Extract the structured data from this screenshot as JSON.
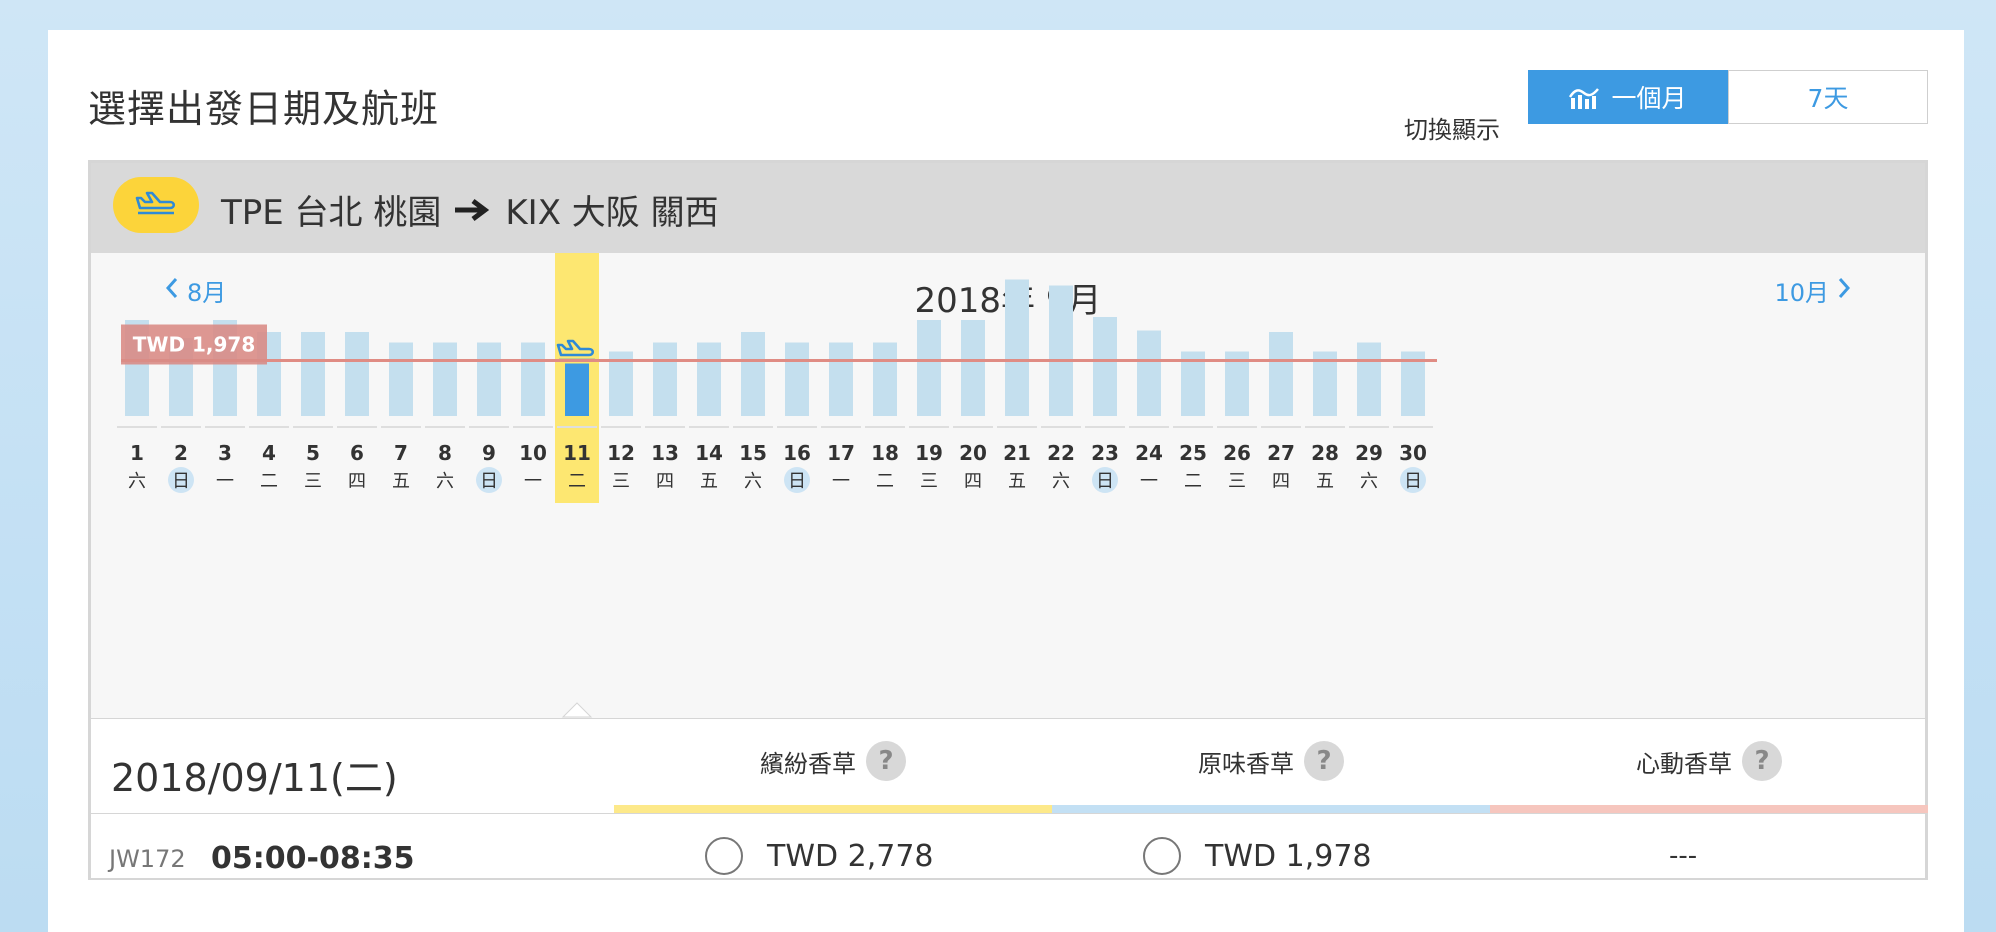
{
  "page": {
    "title": "選擇出發日期及航班",
    "toggle_label": "切換顯示",
    "toggle_options": [
      "一個月",
      "7天"
    ],
    "toggle_selected": "一個月"
  },
  "route": {
    "origin": "TPE 台北 桃園",
    "destination": "KIX 大阪 關西",
    "badge_icon": "plane-icon"
  },
  "calendar": {
    "prev_month": "8月",
    "next_month": "10月",
    "current_month": "2018年 9月",
    "selected_day": 11
  },
  "chart_data": {
    "type": "bar",
    "reference_line_label": "TWD 1,978",
    "days": [
      1,
      2,
      3,
      4,
      5,
      6,
      7,
      8,
      9,
      10,
      11,
      12,
      13,
      14,
      15,
      16,
      17,
      18,
      19,
      20,
      21,
      22,
      23,
      24,
      25,
      26,
      27,
      28,
      29,
      30
    ],
    "weekdays": [
      "六",
      "日",
      "一",
      "二",
      "三",
      "四",
      "五",
      "六",
      "日",
      "一",
      "二",
      "三",
      "四",
      "五",
      "六",
      "日",
      "一",
      "二",
      "三",
      "四",
      "五",
      "六",
      "日",
      "一",
      "二",
      "三",
      "四",
      "五",
      "六",
      "日"
    ],
    "values": [
      0.64,
      0.52,
      0.64,
      0.56,
      0.56,
      0.56,
      0.49,
      0.49,
      0.49,
      0.49,
      0.35,
      0.43,
      0.49,
      0.49,
      0.56,
      0.49,
      0.49,
      0.49,
      0.64,
      0.64,
      0.91,
      0.87,
      0.66,
      0.57,
      0.43,
      0.43,
      0.56,
      0.43,
      0.49,
      0.43
    ],
    "reference_value": 0.37,
    "colors": {
      "bar": "#c4dfee",
      "selected_bar": "#3d9ae2",
      "highlight": "#fde771",
      "reference_line": "#e08c84",
      "sunday_bg": "#cde4f4"
    }
  },
  "details": {
    "selected_date": "2018/09/11(二)",
    "fare_types": [
      {
        "name": "繽紛香草",
        "color": "#fde98a"
      },
      {
        "name": "原味香草",
        "color": "#c3e0f4"
      },
      {
        "name": "心動香草",
        "color": "#f6c6be"
      }
    ],
    "help_mark": "?",
    "flight": {
      "number": "JW172",
      "time": "05:00-08:35",
      "fares": [
        "TWD 2,778",
        "TWD 1,978",
        "---"
      ]
    }
  }
}
